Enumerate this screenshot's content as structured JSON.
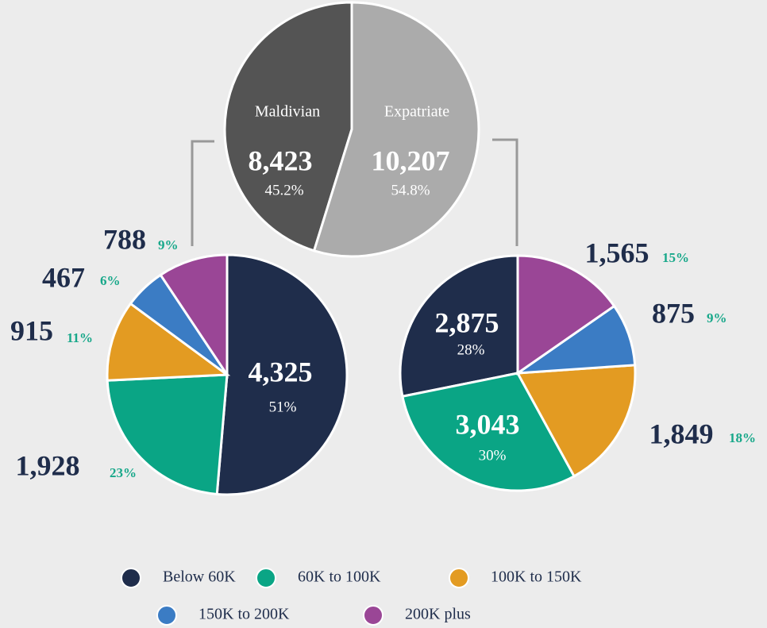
{
  "chart_data": [
    {
      "type": "pie",
      "categories": [
        "Maldivian",
        "Expatriate"
      ],
      "values": [
        8423,
        10207
      ],
      "value_labels": [
        "8,423",
        "10,207"
      ],
      "percent_labels": [
        "45.2%",
        "54.8%"
      ],
      "colors": [
        "#545454",
        "#ababab"
      ]
    },
    {
      "type": "pie",
      "values": [
        4325,
        1928,
        915,
        467,
        788
      ],
      "value_labels": [
        "4,325",
        "1,928",
        "915",
        "467",
        "788"
      ],
      "percent_labels": [
        "51%",
        "23%",
        "11%",
        "6%",
        "9%"
      ],
      "colors": [
        "#1f2d4b",
        "#0aa585",
        "#e39b22",
        "#3b7cc4",
        "#9a4696"
      ]
    },
    {
      "type": "pie",
      "values": [
        2875,
        3043,
        1849,
        875,
        1565
      ],
      "value_labels": [
        "2,875",
        "3,043",
        "1,849",
        "875",
        "1,565"
      ],
      "percent_labels": [
        "28%",
        "30%",
        "18%",
        "9%",
        "15%"
      ],
      "colors": [
        "#1f2d4b",
        "#0aa585",
        "#e39b22",
        "#3b7cc4",
        "#9a4696"
      ]
    }
  ],
  "legend": {
    "items": [
      "Below 60K",
      "60K to 100K",
      "100K to 150K",
      "150K to 200K",
      "200K plus"
    ],
    "colors": [
      "#1f2d4b",
      "#0aa585",
      "#e39b22",
      "#3b7cc4",
      "#9a4696"
    ]
  }
}
